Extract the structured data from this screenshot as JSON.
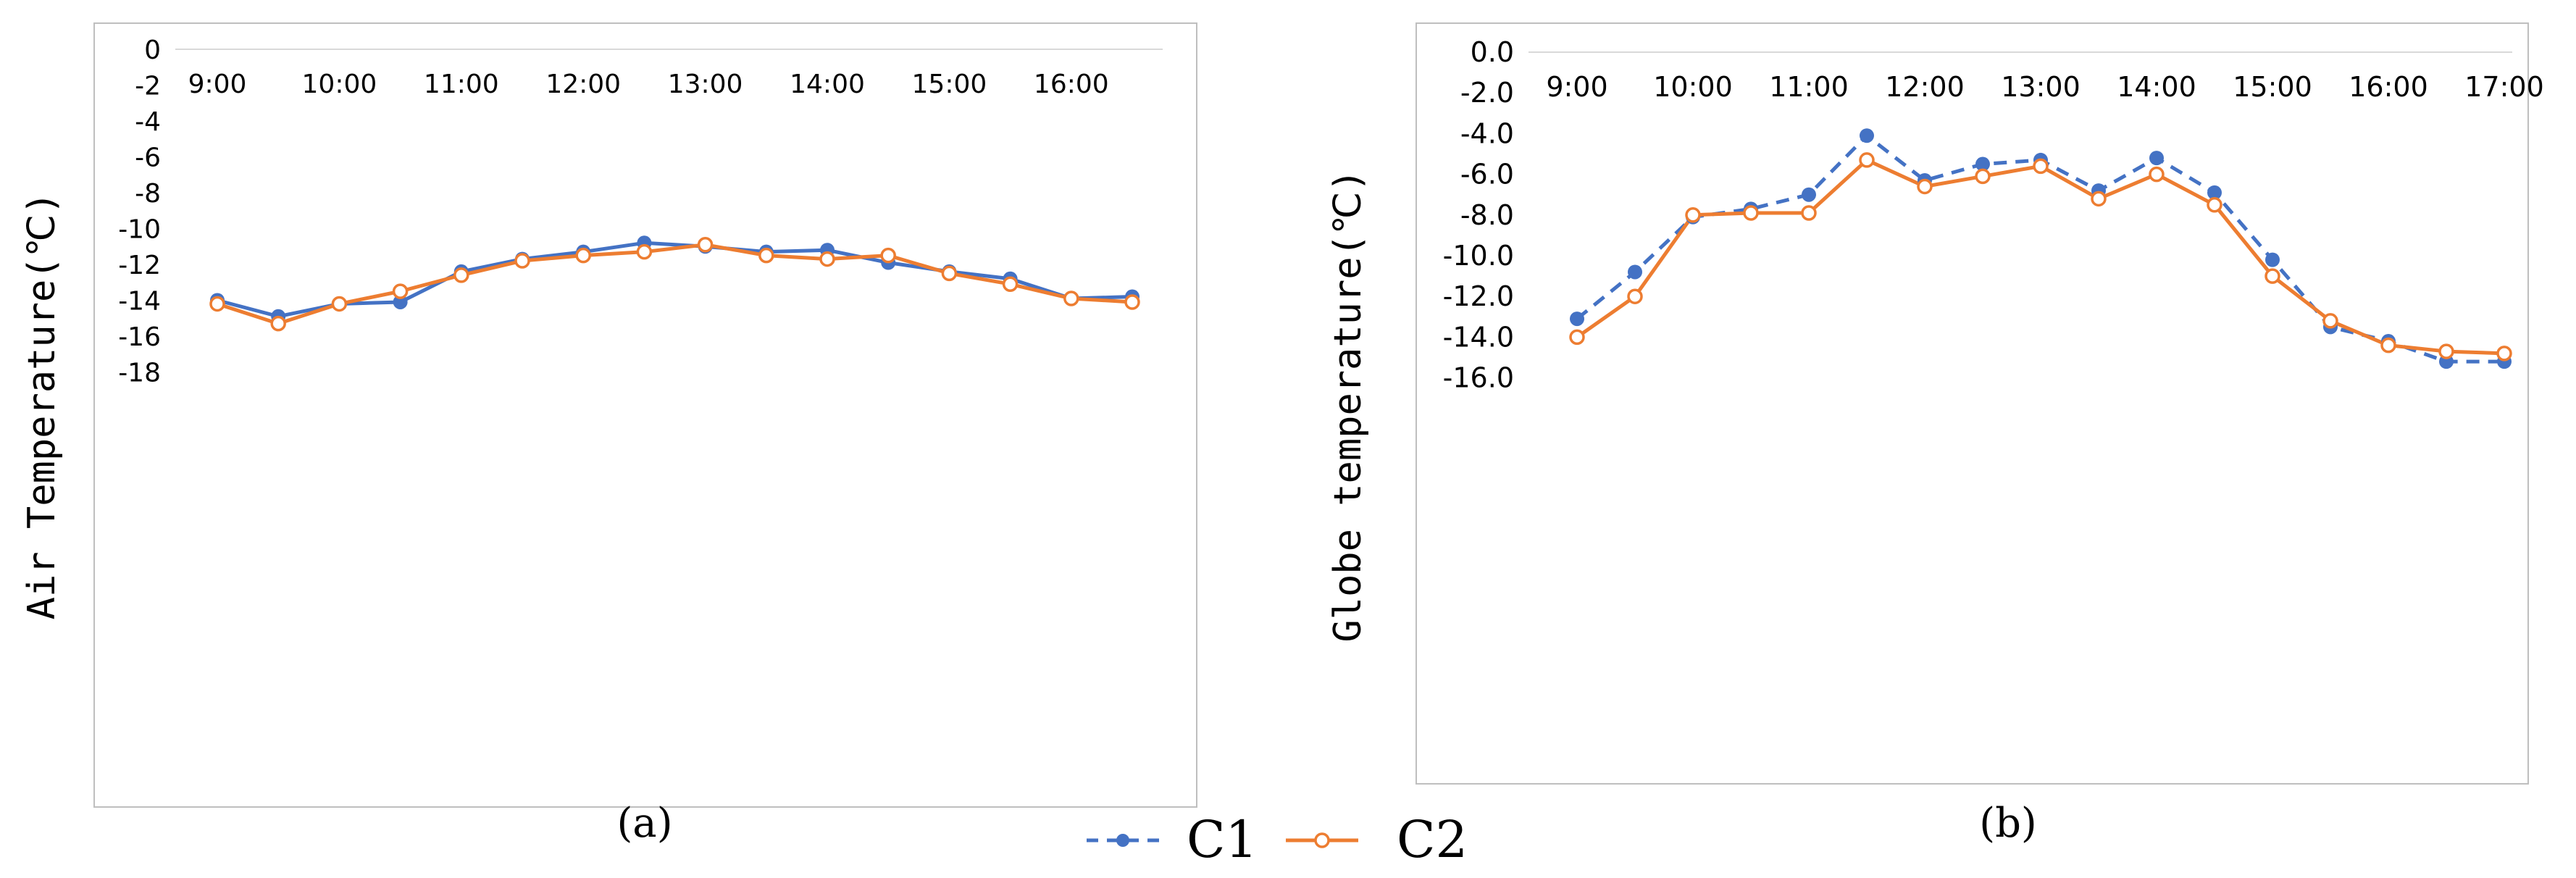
{
  "chart_data": [
    {
      "id": "a",
      "type": "line",
      "caption": "(a)",
      "title": "",
      "ylabel": "Air Temperature(℃)",
      "xlabel": "",
      "ylim": [
        -20,
        0
      ],
      "yticks": [
        0,
        -2,
        -4,
        -6,
        -8,
        -10,
        -12,
        -14,
        -16,
        -18
      ],
      "ytick_labels": [
        "0",
        "-2",
        "-4",
        "-6",
        "-8",
        "-10",
        "-12",
        "-14",
        "-16",
        "-18"
      ],
      "xticks": [
        "9:00",
        "10:00",
        "11:00",
        "12:00",
        "13:00",
        "14:00",
        "15:00",
        "16:00"
      ],
      "x": [
        "9:00",
        "9:30",
        "10:00",
        "10:30",
        "11:00",
        "11:30",
        "12:00",
        "12:30",
        "13:00",
        "13:30",
        "14:00",
        "14:30",
        "15:00",
        "15:30",
        "16:00",
        "16:30"
      ],
      "series": [
        {
          "name": "C1",
          "color": "#4472C4",
          "style": "solid",
          "marker": "filled-circle",
          "values": [
            -14.0,
            -14.9,
            -14.2,
            -14.1,
            -12.4,
            -11.7,
            -11.3,
            -10.8,
            -11.0,
            -11.3,
            -11.2,
            -11.9,
            -12.4,
            -12.8,
            -13.9,
            -13.8
          ]
        },
        {
          "name": "C2",
          "color": "#ED7D31",
          "style": "solid",
          "marker": "open-circle",
          "values": [
            -14.2,
            -15.3,
            -14.2,
            -13.5,
            -12.6,
            -11.8,
            -11.5,
            -11.3,
            -10.9,
            -11.5,
            -11.7,
            -11.5,
            -12.5,
            -13.1,
            -13.9,
            -14.1
          ]
        }
      ]
    },
    {
      "id": "b",
      "type": "line",
      "caption": "(b)",
      "title": "",
      "ylabel": "Globe temperature(℃)",
      "xlabel": "",
      "ylim": [
        -18,
        0
      ],
      "yticks": [
        0,
        -2,
        -4,
        -6,
        -8,
        -10,
        -12,
        -14,
        -16
      ],
      "ytick_labels": [
        "0.0",
        "-2.0",
        "-4.0",
        "-6.0",
        "-8.0",
        "-10.0",
        "-12.0",
        "-14.0",
        "-16.0"
      ],
      "xticks": [
        "9:00",
        "10:00",
        "11:00",
        "12:00",
        "13:00",
        "14:00",
        "15:00",
        "16:00",
        "17:00"
      ],
      "x": [
        "9:00",
        "9:30",
        "10:00",
        "10:30",
        "11:00",
        "11:30",
        "12:00",
        "12:30",
        "13:00",
        "13:30",
        "14:00",
        "14:30",
        "15:00",
        "15:30",
        "16:00",
        "16:30",
        "17:00"
      ],
      "series": [
        {
          "name": "C1",
          "color": "#4472C4",
          "style": "dashed",
          "marker": "filled-circle",
          "values": [
            -13.1,
            -10.8,
            -8.1,
            -7.7,
            -7.0,
            -4.1,
            -6.3,
            -5.5,
            -5.3,
            -6.8,
            -5.2,
            -6.9,
            -10.2,
            -13.5,
            -14.2,
            -15.2,
            -15.2
          ]
        },
        {
          "name": "C2",
          "color": "#ED7D31",
          "style": "solid",
          "marker": "open-circle",
          "values": [
            -14.0,
            -12.0,
            -8.0,
            -7.9,
            -7.9,
            -5.3,
            -6.6,
            -6.1,
            -5.6,
            -7.2,
            -6.0,
            -7.5,
            -11.0,
            -13.2,
            -14.4,
            -14.7,
            -14.8
          ]
        }
      ]
    }
  ],
  "legend": {
    "placement": "bottom-center",
    "items": [
      {
        "label": "C1",
        "color": "#4472C4",
        "style": "dashed",
        "marker": "filled-circle"
      },
      {
        "label": "C2",
        "color": "#ED7D31",
        "style": "solid",
        "marker": "open-circle"
      }
    ]
  }
}
